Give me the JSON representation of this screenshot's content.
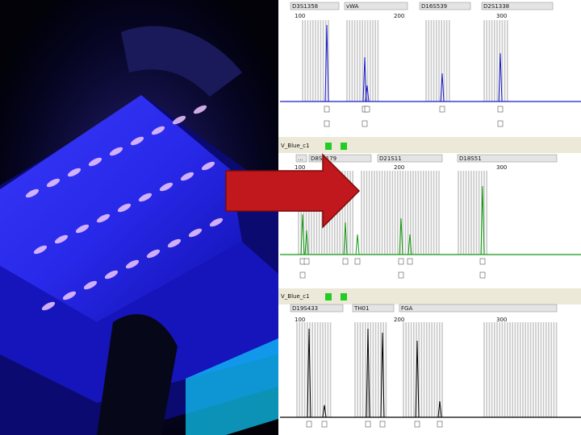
{
  "panels": [
    {
      "loci": [
        "D3S1358",
        "vWA",
        "D16S539",
        "D2S1338"
      ],
      "scale": [
        "100",
        "200",
        "300"
      ]
    },
    {
      "sample": "V_Blue_c1",
      "loci": [
        "...",
        "D8S1179",
        "D21S11",
        "D18S51"
      ],
      "scale": [
        "100",
        "200",
        "300"
      ]
    },
    {
      "sample": "V_Blue_c1",
      "loci": [
        "D19S433",
        "TH01",
        "FGA"
      ],
      "scale": [
        "100",
        "200",
        "300"
      ]
    }
  ]
}
